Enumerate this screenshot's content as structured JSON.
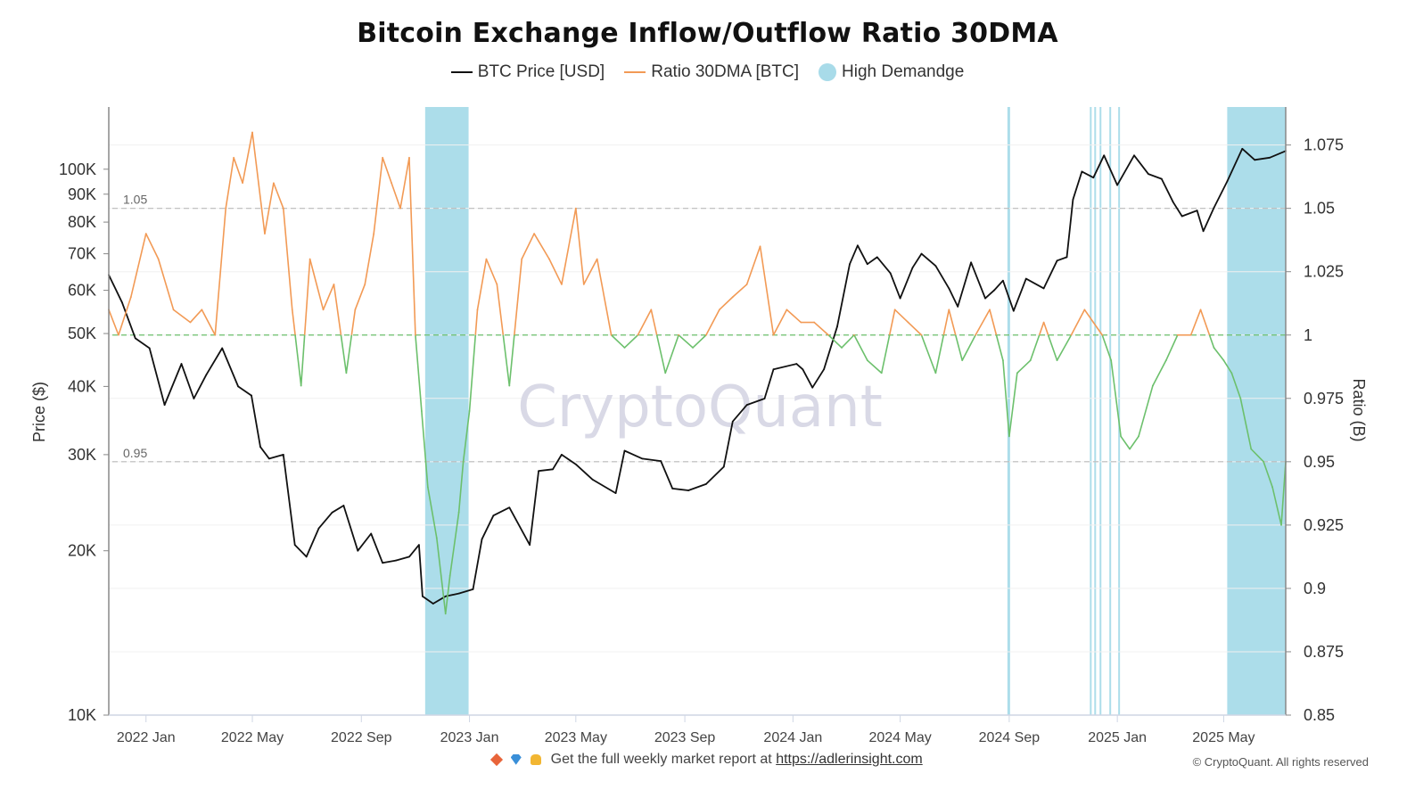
{
  "chart_data": {
    "type": "line",
    "title": "Bitcoin Exchange Inflow/Outflow Ratio 30DMA",
    "legend": [
      {
        "name": "BTC Price [USD]",
        "color": "#111111",
        "style": "line"
      },
      {
        "name": "Ratio 30DMA [BTC]",
        "color": "#f29a55",
        "style": "line"
      },
      {
        "name": "High Demandge",
        "color": "#a8dbe9",
        "style": "dot"
      }
    ],
    "ylabel_left": "Price ($)",
    "ylabel_right": "Ratio (B)",
    "y_left_scale": "log",
    "ylim_left": [
      10000,
      130000
    ],
    "yticks_left": [
      {
        "value": 10000,
        "label": "10K"
      },
      {
        "value": 20000,
        "label": "20K"
      },
      {
        "value": 30000,
        "label": "30K"
      },
      {
        "value": 40000,
        "label": "40K"
      },
      {
        "value": 50000,
        "label": "50K"
      },
      {
        "value": 60000,
        "label": "60K"
      },
      {
        "value": 70000,
        "label": "70K"
      },
      {
        "value": 80000,
        "label": "80K"
      },
      {
        "value": 90000,
        "label": "90K"
      },
      {
        "value": 100000,
        "label": "100K"
      }
    ],
    "ylim_right": [
      0.85,
      1.09
    ],
    "yticks_right": [
      {
        "value": 0.85,
        "label": "0.85"
      },
      {
        "value": 0.875,
        "label": "0.875"
      },
      {
        "value": 0.9,
        "label": "0.9"
      },
      {
        "value": 0.925,
        "label": "0.925"
      },
      {
        "value": 0.95,
        "label": "0.95"
      },
      {
        "value": 0.975,
        "label": "0.975"
      },
      {
        "value": 1.0,
        "label": "1"
      },
      {
        "value": 1.025,
        "label": "1.025"
      },
      {
        "value": 1.05,
        "label": "1.05"
      },
      {
        "value": 1.075,
        "label": "1.075"
      }
    ],
    "xlim": [
      "2021-11-20",
      "2025-07-10"
    ],
    "xticks": [
      {
        "date": "2022-01-01",
        "label": "2022 Jan"
      },
      {
        "date": "2022-05-01",
        "label": "2022 May"
      },
      {
        "date": "2022-09-01",
        "label": "2022 Sep"
      },
      {
        "date": "2023-01-01",
        "label": "2023 Jan"
      },
      {
        "date": "2023-05-01",
        "label": "2023 May"
      },
      {
        "date": "2023-09-01",
        "label": "2023 Sep"
      },
      {
        "date": "2024-01-01",
        "label": "2024 Jan"
      },
      {
        "date": "2024-05-01",
        "label": "2024 May"
      },
      {
        "date": "2024-09-01",
        "label": "2024 Sep"
      },
      {
        "date": "2025-01-01",
        "label": "2025 Jan"
      },
      {
        "date": "2025-05-01",
        "label": "2025 May"
      }
    ],
    "reference_lines": [
      {
        "axis": "right",
        "value": 1.05,
        "label": "1.05",
        "color": "#bbbbbb"
      },
      {
        "axis": "right",
        "value": 1.0,
        "label": "",
        "color": "#6cc06c"
      },
      {
        "axis": "right",
        "value": 0.95,
        "label": "0.95",
        "color": "#bbbbbb"
      }
    ],
    "ratio_threshold": 1.0,
    "ratio_color_above": "#f29a55",
    "ratio_color_below": "#6cc06c",
    "series": [
      {
        "name": "BTC Price [USD]",
        "axis": "left",
        "color": "#111111",
        "x": [
          "2021-11-20",
          "2021-12-05",
          "2021-12-20",
          "2022-01-05",
          "2022-01-22",
          "2022-02-10",
          "2022-02-24",
          "2022-03-10",
          "2022-03-28",
          "2022-04-15",
          "2022-04-30",
          "2022-05-10",
          "2022-05-20",
          "2022-06-05",
          "2022-06-18",
          "2022-07-01",
          "2022-07-15",
          "2022-07-30",
          "2022-08-12",
          "2022-08-28",
          "2022-09-12",
          "2022-09-25",
          "2022-10-10",
          "2022-10-25",
          "2022-11-05",
          "2022-11-09",
          "2022-11-21",
          "2022-12-05",
          "2022-12-20",
          "2023-01-05",
          "2023-01-15",
          "2023-01-28",
          "2023-02-15",
          "2023-03-10",
          "2023-03-20",
          "2023-04-05",
          "2023-04-15",
          "2023-05-01",
          "2023-05-20",
          "2023-06-15",
          "2023-06-25",
          "2023-07-15",
          "2023-08-05",
          "2023-08-18",
          "2023-09-05",
          "2023-09-25",
          "2023-10-15",
          "2023-10-25",
          "2023-11-10",
          "2023-11-30",
          "2023-12-10",
          "2024-01-05",
          "2024-01-12",
          "2024-01-23",
          "2024-02-05",
          "2024-02-20",
          "2024-03-05",
          "2024-03-14",
          "2024-03-25",
          "2024-04-05",
          "2024-04-20",
          "2024-05-01",
          "2024-05-15",
          "2024-05-25",
          "2024-06-10",
          "2024-06-25",
          "2024-07-05",
          "2024-07-20",
          "2024-08-05",
          "2024-08-15",
          "2024-08-25",
          "2024-09-06",
          "2024-09-20",
          "2024-10-10",
          "2024-10-25",
          "2024-11-05",
          "2024-11-12",
          "2024-11-22",
          "2024-12-05",
          "2024-12-17",
          "2025-01-01",
          "2025-01-20",
          "2025-02-05",
          "2025-02-20",
          "2025-03-05",
          "2025-03-15",
          "2025-04-01",
          "2025-04-08",
          "2025-04-20",
          "2025-05-05",
          "2025-05-22",
          "2025-06-05",
          "2025-06-22",
          "2025-07-10"
        ],
        "values": [
          64000,
          57000,
          49000,
          47000,
          37000,
          44000,
          38000,
          42000,
          47000,
          40000,
          38500,
          31000,
          29500,
          30000,
          20500,
          19500,
          22000,
          23500,
          24200,
          20000,
          21500,
          19000,
          19200,
          19500,
          20500,
          16500,
          16000,
          16500,
          16700,
          17000,
          21000,
          23200,
          24000,
          20500,
          28000,
          28200,
          30000,
          28800,
          27000,
          25500,
          30500,
          29500,
          29200,
          26000,
          25800,
          26500,
          28500,
          34500,
          37000,
          38000,
          43000,
          44000,
          43000,
          39800,
          43000,
          51500,
          67000,
          72500,
          67000,
          69000,
          64500,
          58000,
          66000,
          70000,
          66500,
          60500,
          56000,
          67500,
          58000,
          60000,
          62500,
          55000,
          63000,
          60500,
          68000,
          69000,
          88000,
          99000,
          96500,
          106000,
          93500,
          106000,
          98000,
          96000,
          87000,
          82000,
          84000,
          77000,
          85000,
          95000,
          109000,
          104000,
          105000,
          108000
        ]
      },
      {
        "name": "Ratio 30DMA [BTC]",
        "axis": "right",
        "color": "#f29a55",
        "x": [
          "2021-11-20",
          "2021-12-01",
          "2021-12-15",
          "2022-01-01",
          "2022-01-15",
          "2022-02-01",
          "2022-02-20",
          "2022-03-05",
          "2022-03-20",
          "2022-04-01",
          "2022-04-10",
          "2022-04-20",
          "2022-05-01",
          "2022-05-15",
          "2022-05-25",
          "2022-06-05",
          "2022-06-15",
          "2022-06-25",
          "2022-07-05",
          "2022-07-20",
          "2022-08-01",
          "2022-08-15",
          "2022-08-25",
          "2022-09-05",
          "2022-09-15",
          "2022-09-25",
          "2022-10-05",
          "2022-10-15",
          "2022-10-25",
          "2022-11-01",
          "2022-11-08",
          "2022-11-15",
          "2022-11-25",
          "2022-12-05",
          "2022-12-10",
          "2022-12-20",
          "2022-12-25",
          "2023-01-01",
          "2023-01-10",
          "2023-01-20",
          "2023-02-01",
          "2023-02-15",
          "2023-03-01",
          "2023-03-15",
          "2023-04-01",
          "2023-04-15",
          "2023-05-01",
          "2023-05-10",
          "2023-05-25",
          "2023-06-10",
          "2023-06-25",
          "2023-07-10",
          "2023-07-25",
          "2023-08-10",
          "2023-08-25",
          "2023-09-10",
          "2023-09-25",
          "2023-10-10",
          "2023-10-25",
          "2023-11-10",
          "2023-11-25",
          "2023-12-10",
          "2023-12-25",
          "2024-01-10",
          "2024-01-25",
          "2024-02-10",
          "2024-02-25",
          "2024-03-10",
          "2024-03-25",
          "2024-04-10",
          "2024-04-25",
          "2024-05-10",
          "2024-05-25",
          "2024-06-10",
          "2024-06-25",
          "2024-07-10",
          "2024-07-25",
          "2024-08-10",
          "2024-08-25",
          "2024-09-01",
          "2024-09-10",
          "2024-09-25",
          "2024-10-10",
          "2024-10-25",
          "2024-11-10",
          "2024-11-25",
          "2024-12-05",
          "2024-12-15",
          "2024-12-25",
          "2025-01-05",
          "2025-01-15",
          "2025-01-25",
          "2025-02-10",
          "2025-02-25",
          "2025-03-10",
          "2025-03-25",
          "2025-04-05",
          "2025-04-20",
          "2025-05-01",
          "2025-05-10",
          "2025-05-20",
          "2025-06-01",
          "2025-06-15",
          "2025-06-25",
          "2025-07-05",
          "2025-07-10"
        ],
        "values": [
          1.01,
          1.0,
          1.015,
          1.04,
          1.03,
          1.01,
          1.005,
          1.01,
          1.0,
          1.05,
          1.07,
          1.06,
          1.08,
          1.04,
          1.06,
          1.05,
          1.01,
          0.98,
          1.03,
          1.01,
          1.02,
          0.985,
          1.01,
          1.02,
          1.04,
          1.07,
          1.06,
          1.05,
          1.07,
          1.0,
          0.97,
          0.94,
          0.92,
          0.89,
          0.905,
          0.93,
          0.95,
          0.97,
          1.01,
          1.03,
          1.02,
          0.98,
          1.03,
          1.04,
          1.03,
          1.02,
          1.05,
          1.02,
          1.03,
          1.0,
          0.995,
          1.0,
          1.01,
          0.985,
          1.0,
          0.995,
          1.0,
          1.01,
          1.015,
          1.02,
          1.035,
          1.0,
          1.01,
          1.005,
          1.005,
          1.0,
          0.995,
          1.0,
          0.99,
          0.985,
          1.01,
          1.005,
          1.0,
          0.985,
          1.01,
          0.99,
          1.0,
          1.01,
          0.99,
          0.96,
          0.985,
          0.99,
          1.005,
          0.99,
          1.0,
          1.01,
          1.005,
          1.0,
          0.99,
          0.96,
          0.955,
          0.96,
          0.98,
          0.99,
          1.0,
          1.0,
          1.01,
          0.995,
          0.99,
          0.985,
          0.975,
          0.955,
          0.95,
          0.94,
          0.925,
          0.95
        ]
      }
    ],
    "high_demand_bands": [
      [
        "2022-11-12",
        "2022-12-31"
      ],
      [
        "2024-08-30",
        "2024-09-02"
      ],
      [
        "2024-12-01",
        "2024-12-03"
      ],
      [
        "2024-12-06",
        "2024-12-08"
      ],
      [
        "2024-12-12",
        "2024-12-14"
      ],
      [
        "2024-12-23",
        "2024-12-25"
      ],
      [
        "2025-01-02",
        "2025-01-04"
      ],
      [
        "2025-05-05",
        "2025-07-10"
      ]
    ],
    "watermark": "CryptoQuant"
  },
  "footer": {
    "text": "Get the full weekly market report at",
    "link": "https://adlerinsight.com",
    "copyright": "© CryptoQuant. All rights reserved"
  }
}
